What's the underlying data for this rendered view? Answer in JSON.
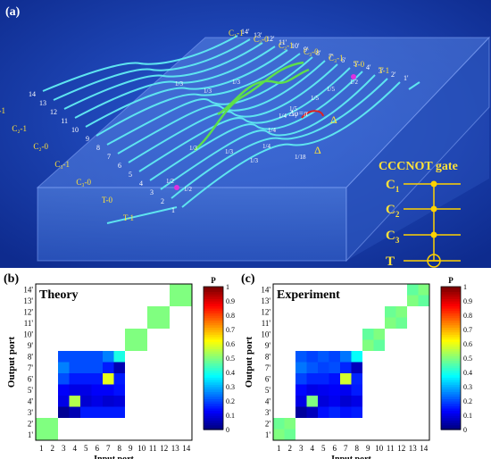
{
  "panels": {
    "a": {
      "label": "(a)"
    },
    "b": {
      "label": "(b)",
      "title": "Theory"
    },
    "c": {
      "label": "(c)",
      "title": "Experiment"
    }
  },
  "gate": {
    "title": "CCCNOT gate",
    "rows": [
      "C",
      "C",
      "C",
      "T"
    ],
    "subs": [
      "1",
      "2",
      "3",
      ""
    ]
  },
  "chip": {
    "input_labels": [
      "1",
      "2",
      "3",
      "4",
      "5",
      "6",
      "7",
      "8",
      "9",
      "10",
      "11",
      "12",
      "13",
      "14"
    ],
    "output_labels": [
      "1'",
      "2'",
      "3'",
      "4'",
      "5'",
      "6'",
      "7'",
      "8'",
      "9'",
      "10'",
      "11'",
      "12'",
      "13'",
      "14'"
    ],
    "input_logic": [
      "T-1",
      "T-0",
      "C₃-0",
      "C₃-1",
      "C₂-0",
      "C₂-1",
      "C₁-1"
    ],
    "output_logic": [
      "T-1",
      "T-0",
      "C₃-1",
      "C₃-0",
      "C₂-1",
      "C₂-0",
      "C₁-1"
    ],
    "ratio_labels": [
      "1/2",
      "1/2",
      "1/2",
      "1/3",
      "1/3",
      "1/3",
      "1/3",
      "1/4",
      "1/4",
      "1/4",
      "1/5",
      "1/5",
      "1/5",
      "1/18",
      "1/3",
      "1/3"
    ],
    "phase_label": "Δφ=π",
    "delta_label": "Δ"
  },
  "heatmaps": {
    "ylabel": "Output port",
    "xlabel": "Input port",
    "x_ticks": [
      "1",
      "2",
      "3",
      "4",
      "5",
      "6",
      "7",
      "8",
      "9",
      "10",
      "11",
      "12",
      "13",
      "14"
    ],
    "y_ticks": [
      "1'",
      "2'",
      "3'",
      "4'",
      "5'",
      "6'",
      "7'",
      "8'",
      "9'",
      "10'",
      "11'",
      "12'",
      "13'",
      "14'"
    ],
    "colorbar_title": "P",
    "colorbar_ticks": [
      "0",
      "0.1",
      "0.2",
      "0.3",
      "0.4",
      "0.5",
      "0.6",
      "0.7",
      "0.8",
      "0.9",
      "1"
    ]
  },
  "chart_data": [
    {
      "type": "heatmap",
      "title": "Theory",
      "xlabel": "Input port",
      "ylabel": "Output port",
      "x_categories": [
        "1",
        "2",
        "3",
        "4",
        "5",
        "6",
        "7",
        "8",
        "9",
        "10",
        "11",
        "12",
        "13",
        "14"
      ],
      "y_categories": [
        "1'",
        "2'",
        "3'",
        "4'",
        "5'",
        "6'",
        "7'",
        "8'",
        "9'",
        "10'",
        "11'",
        "12'",
        "13'",
        "14'"
      ],
      "zlim": [
        0,
        1
      ],
      "matrix": [
        [
          0.5,
          0.5,
          0,
          0,
          0,
          0,
          0,
          0,
          0,
          0,
          0,
          0,
          0,
          0
        ],
        [
          0.5,
          0.5,
          0,
          0,
          0,
          0,
          0,
          0,
          0,
          0,
          0,
          0,
          0,
          0
        ],
        [
          0,
          0,
          0.02,
          0.05,
          0.15,
          0.15,
          0.15,
          0.15,
          0,
          0,
          0,
          0,
          0,
          0
        ],
        [
          0,
          0,
          0.1,
          0.55,
          0.08,
          0.1,
          0.08,
          0.09,
          0,
          0,
          0,
          0,
          0,
          0
        ],
        [
          0,
          0,
          0.12,
          0.1,
          0.1,
          0.12,
          0.12,
          0.14,
          0,
          0,
          0,
          0,
          0,
          0
        ],
        [
          0,
          0,
          0.2,
          0.15,
          0.15,
          0.15,
          0.6,
          0.15,
          0,
          0,
          0,
          0,
          0,
          0
        ],
        [
          0,
          0,
          0.25,
          0.2,
          0.2,
          0.2,
          0.15,
          0.05,
          0,
          0,
          0,
          0,
          0,
          0
        ],
        [
          0,
          0,
          0.2,
          0.2,
          0.2,
          0.2,
          0.25,
          0.4,
          0,
          0,
          0,
          0,
          0,
          0
        ],
        [
          0,
          0,
          0,
          0,
          0,
          0,
          0,
          0,
          0.5,
          0.5,
          0,
          0,
          0,
          0
        ],
        [
          0,
          0,
          0,
          0,
          0,
          0,
          0,
          0,
          0.5,
          0.5,
          0,
          0,
          0,
          0
        ],
        [
          0,
          0,
          0,
          0,
          0,
          0,
          0,
          0,
          0,
          0,
          0.5,
          0.5,
          0,
          0
        ],
        [
          0,
          0,
          0,
          0,
          0,
          0,
          0,
          0,
          0,
          0,
          0.5,
          0.5,
          0,
          0
        ],
        [
          0,
          0,
          0,
          0,
          0,
          0,
          0,
          0,
          0,
          0,
          0,
          0,
          0.5,
          0.5
        ],
        [
          0,
          0,
          0,
          0,
          0,
          0,
          0,
          0,
          0,
          0,
          0,
          0,
          0.5,
          0.5
        ]
      ]
    },
    {
      "type": "heatmap",
      "title": "Experiment",
      "xlabel": "Input port",
      "ylabel": "Output port",
      "x_categories": [
        "1",
        "2",
        "3",
        "4",
        "5",
        "6",
        "7",
        "8",
        "9",
        "10",
        "11",
        "12",
        "13",
        "14"
      ],
      "y_categories": [
        "1'",
        "2'",
        "3'",
        "4'",
        "5'",
        "6'",
        "7'",
        "8'",
        "9'",
        "10'",
        "11'",
        "12'",
        "13'",
        "14'"
      ],
      "zlim": [
        0,
        1
      ],
      "matrix": [
        [
          0.5,
          0.48,
          0,
          0,
          0,
          0,
          0,
          0,
          0,
          0,
          0,
          0,
          0,
          0
        ],
        [
          0.48,
          0.5,
          0,
          0,
          0,
          0,
          0,
          0,
          0,
          0,
          0,
          0,
          0,
          0
        ],
        [
          0,
          0,
          0.03,
          0.06,
          0.14,
          0.16,
          0.14,
          0.15,
          0,
          0,
          0,
          0,
          0,
          0
        ],
        [
          0,
          0,
          0.1,
          0.5,
          0.09,
          0.11,
          0.08,
          0.1,
          0,
          0,
          0,
          0,
          0,
          0
        ],
        [
          0,
          0,
          0.13,
          0.1,
          0.11,
          0.12,
          0.11,
          0.15,
          0,
          0,
          0,
          0,
          0,
          0
        ],
        [
          0,
          0,
          0.19,
          0.16,
          0.16,
          0.14,
          0.58,
          0.16,
          0,
          0,
          0,
          0,
          0,
          0
        ],
        [
          0,
          0,
          0.24,
          0.21,
          0.19,
          0.2,
          0.16,
          0.06,
          0,
          0,
          0,
          0,
          0,
          0
        ],
        [
          0,
          0,
          0.21,
          0.19,
          0.21,
          0.19,
          0.24,
          0.38,
          0,
          0,
          0,
          0,
          0,
          0
        ],
        [
          0,
          0,
          0,
          0,
          0,
          0,
          0,
          0,
          0.5,
          0.47,
          0,
          0,
          0,
          0
        ],
        [
          0,
          0,
          0,
          0,
          0,
          0,
          0,
          0,
          0.47,
          0.5,
          0,
          0,
          0,
          0
        ],
        [
          0,
          0,
          0,
          0,
          0,
          0,
          0,
          0,
          0,
          0,
          0.5,
          0.48,
          0,
          0
        ],
        [
          0,
          0,
          0,
          0,
          0,
          0,
          0,
          0,
          0,
          0,
          0.48,
          0.5,
          0,
          0
        ],
        [
          0,
          0,
          0,
          0,
          0,
          0,
          0,
          0,
          0,
          0,
          0,
          0,
          0.5,
          0.47
        ],
        [
          0,
          0,
          0,
          0,
          0,
          0,
          0,
          0,
          0,
          0,
          0,
          0,
          0.47,
          0.5
        ]
      ]
    }
  ],
  "colors": {
    "panel_bg": "#173eb8",
    "waveguide": "#5ee4f0",
    "green_path": "#5de04a",
    "label": "#ffe23a",
    "marker": "#e030e0",
    "phase": "#e02020",
    "gate_line": "#ffd200",
    "white_text": "#ffffff"
  }
}
